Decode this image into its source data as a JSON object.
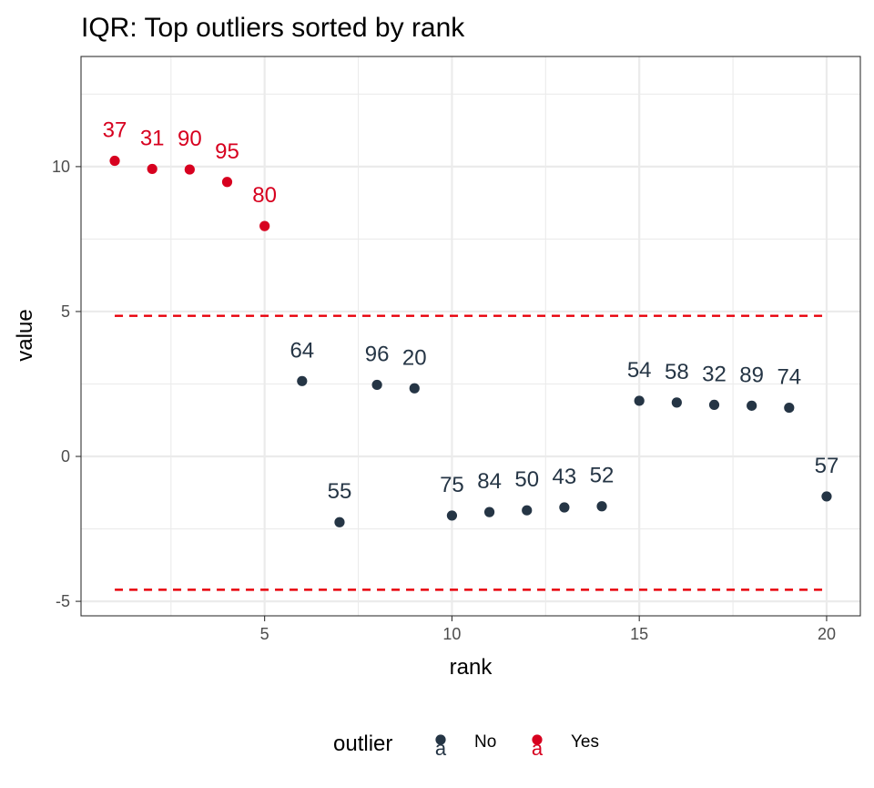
{
  "chart_data": {
    "type": "scatter",
    "title": "IQR: Top outliers sorted by rank",
    "xlabel": "rank",
    "ylabel": "value",
    "xlim": [
      0.1,
      20.9
    ],
    "ylim": [
      -5.5,
      13.8
    ],
    "xticks": [
      5,
      10,
      15,
      20
    ],
    "yticks": [
      -5,
      0,
      5,
      10
    ],
    "x_tick_labels": [
      "5",
      "10",
      "15",
      "20"
    ],
    "y_tick_labels": [
      "-5",
      "0",
      "5",
      "10"
    ],
    "grid": true,
    "legend": {
      "title": "outlier",
      "position": "bottom",
      "entries": [
        {
          "label": "No",
          "key": "a",
          "color": "#253545"
        },
        {
          "label": "Yes",
          "key": "a",
          "color": "#d7001f"
        }
      ]
    },
    "thresholds": {
      "upper": 4.85,
      "lower": -4.6,
      "x_range": [
        1,
        20
      ],
      "color": "#e8000b",
      "style": "dashed"
    },
    "colors": {
      "No": "#253545",
      "Yes": "#d7001f"
    },
    "points": [
      {
        "rank": 1,
        "value": 10.2,
        "label": "37",
        "outlier": "Yes"
      },
      {
        "rank": 2,
        "value": 9.92,
        "label": "31",
        "outlier": "Yes"
      },
      {
        "rank": 3,
        "value": 9.9,
        "label": "90",
        "outlier": "Yes"
      },
      {
        "rank": 4,
        "value": 9.47,
        "label": "95",
        "outlier": "Yes"
      },
      {
        "rank": 5,
        "value": 7.95,
        "label": "80",
        "outlier": "Yes"
      },
      {
        "rank": 6,
        "value": 2.6,
        "label": "64",
        "outlier": "No"
      },
      {
        "rank": 7,
        "value": -2.27,
        "label": "55",
        "outlier": "No"
      },
      {
        "rank": 8,
        "value": 2.47,
        "label": "96",
        "outlier": "No"
      },
      {
        "rank": 9,
        "value": 2.35,
        "label": "20",
        "outlier": "No"
      },
      {
        "rank": 10,
        "value": -2.04,
        "label": "75",
        "outlier": "No"
      },
      {
        "rank": 11,
        "value": -1.92,
        "label": "84",
        "outlier": "No"
      },
      {
        "rank": 12,
        "value": -1.86,
        "label": "50",
        "outlier": "No"
      },
      {
        "rank": 13,
        "value": -1.76,
        "label": "43",
        "outlier": "No"
      },
      {
        "rank": 14,
        "value": -1.72,
        "label": "52",
        "outlier": "No"
      },
      {
        "rank": 15,
        "value": 1.92,
        "label": "54",
        "outlier": "No"
      },
      {
        "rank": 16,
        "value": 1.86,
        "label": "58",
        "outlier": "No"
      },
      {
        "rank": 17,
        "value": 1.78,
        "label": "32",
        "outlier": "No"
      },
      {
        "rank": 18,
        "value": 1.75,
        "label": "89",
        "outlier": "No"
      },
      {
        "rank": 19,
        "value": 1.68,
        "label": "74",
        "outlier": "No"
      },
      {
        "rank": 20,
        "value": -1.38,
        "label": "57",
        "outlier": "No"
      }
    ]
  }
}
